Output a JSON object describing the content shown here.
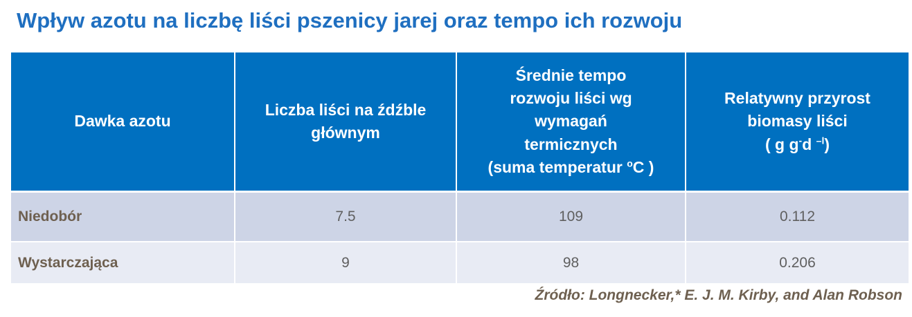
{
  "title": "Wpływ azotu na liczbę liści pszenicy jarej oraz tempo ich rozwoju",
  "table": {
    "headers": {
      "col1": "Dawka azotu",
      "col2": "Liczba liści na źdźble głównym",
      "col3_lines": [
        "Średnie tempo",
        "rozwoju liści wg",
        "wymagań",
        "termicznych",
        "(suma temperatur "
      ],
      "col3_sup": "o",
      "col3_tail": "C )",
      "col4_lines": [
        "Relatywny przyrost",
        "biomasy liści"
      ],
      "col4_unit_a": "( g g",
      "col4_sup1": "-",
      "col4_unit_b": "d ",
      "col4_sup2": "–l",
      "col4_unit_c": ")"
    },
    "rows": [
      {
        "label": "Niedobór",
        "leaves": "7.5",
        "tempo": "109",
        "growth": "0.112"
      },
      {
        "label": "Wystarczająca",
        "leaves": "9",
        "tempo": "98",
        "growth": "0.206"
      }
    ]
  },
  "source": "Źródło: Longnecker,* E. J. M. Kirby, and Alan  Robson",
  "colors": {
    "title": "#1f6fc0",
    "header_bg": "#0070c0",
    "row1_bg": "#cdd4e6",
    "row2_bg": "#e8ebf4",
    "label_text": "#6e6050"
  }
}
